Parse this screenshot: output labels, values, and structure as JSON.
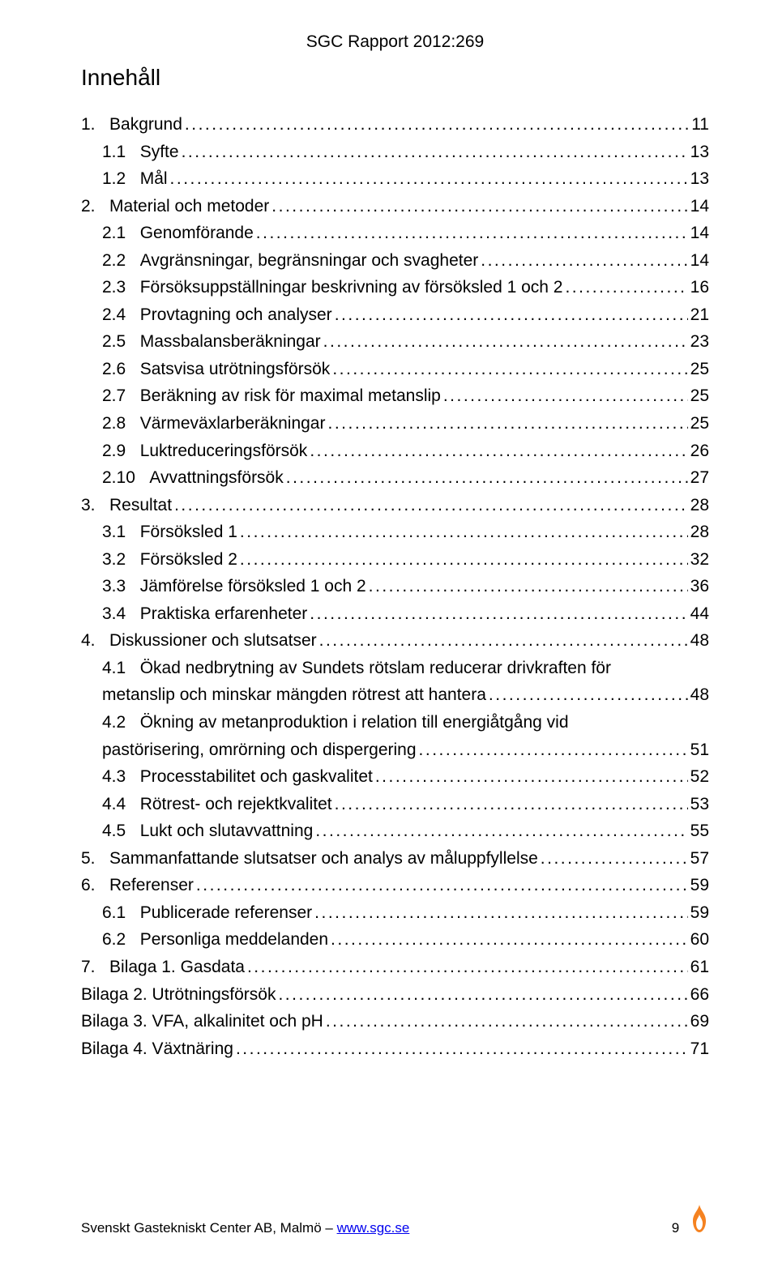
{
  "header": {
    "report_label": "SGC Rapport 2012:269"
  },
  "section_title": "Innehåll",
  "toc": [
    {
      "indent": 0,
      "num": "1.",
      "title": "Bakgrund",
      "page": "11"
    },
    {
      "indent": 1,
      "num": "1.1",
      "title": "Syfte",
      "page": "13"
    },
    {
      "indent": 1,
      "num": "1.2",
      "title": "Mål",
      "page": "13"
    },
    {
      "indent": 0,
      "num": "2.",
      "title": "Material och metoder",
      "page": "14"
    },
    {
      "indent": 1,
      "num": "2.1",
      "title": "Genomförande",
      "page": "14"
    },
    {
      "indent": 1,
      "num": "2.2",
      "title": "Avgränsningar, begränsningar och svagheter",
      "page": "14"
    },
    {
      "indent": 1,
      "num": "2.3",
      "title": "Försöksuppställningar beskrivning av försöksled 1 och 2",
      "page": "16"
    },
    {
      "indent": 1,
      "num": "2.4",
      "title": "Provtagning och analyser",
      "page": "21"
    },
    {
      "indent": 1,
      "num": "2.5",
      "title": "Massbalansberäkningar",
      "page": "23"
    },
    {
      "indent": 1,
      "num": "2.6",
      "title": "Satsvisa utrötningsförsök",
      "page": "25"
    },
    {
      "indent": 1,
      "num": "2.7",
      "title": "Beräkning av risk för maximal metanslip",
      "page": "25"
    },
    {
      "indent": 1,
      "num": "2.8",
      "title": "Värmeväxlarberäkningar",
      "page": "25"
    },
    {
      "indent": 1,
      "num": "2.9",
      "title": "Luktreduceringsförsök",
      "page": "26"
    },
    {
      "indent": 1,
      "num": "2.10",
      "title": "Avvattningsförsök",
      "page": "27"
    },
    {
      "indent": 0,
      "num": "3.",
      "title": "Resultat",
      "page": "28"
    },
    {
      "indent": 1,
      "num": "3.1",
      "title": "Försöksled 1",
      "page": "28"
    },
    {
      "indent": 1,
      "num": "3.2",
      "title": "Försöksled 2",
      "page": "32"
    },
    {
      "indent": 1,
      "num": "3.3",
      "title": "Jämförelse försöksled 1 och 2",
      "page": "36"
    },
    {
      "indent": 1,
      "num": "3.4",
      "title": "Praktiska erfarenheter",
      "page": "44"
    },
    {
      "indent": 0,
      "num": "4.",
      "title": "Diskussioner och slutsatser",
      "page": "48"
    },
    {
      "indent": 1,
      "num": "4.1",
      "title": "Ökad nedbrytning av Sundets rötslam reducerar drivkraften för",
      "title2": "metanslip och minskar mängden rötrest att hantera",
      "page": "48"
    },
    {
      "indent": 1,
      "num": "4.2",
      "title": "Ökning av metanproduktion i relation till energiåtgång vid",
      "title2": "pastörisering, omrörning och dispergering",
      "page": "51"
    },
    {
      "indent": 1,
      "num": "4.3",
      "title": "Processtabilitet och gaskvalitet",
      "page": "52"
    },
    {
      "indent": 1,
      "num": "4.4",
      "title": "Rötrest- och rejektkvalitet",
      "page": "53"
    },
    {
      "indent": 1,
      "num": "4.5",
      "title": "Lukt och slutavvattning",
      "page": "55"
    },
    {
      "indent": 0,
      "num": "5.",
      "title": "Sammanfattande slutsatser och analys av måluppfyllelse",
      "page": "57"
    },
    {
      "indent": 0,
      "num": "6.",
      "title": "Referenser",
      "page": "59"
    },
    {
      "indent": 1,
      "num": "6.1",
      "title": "Publicerade referenser",
      "page": "59"
    },
    {
      "indent": 1,
      "num": "6.2",
      "title": "Personliga meddelanden",
      "page": "60"
    },
    {
      "indent": 0,
      "num": "7.",
      "title": "Bilaga 1. Gasdata",
      "page": "61"
    },
    {
      "indent": 0,
      "num": "",
      "title": "Bilaga 2. Utrötningsförsök",
      "page": "66"
    },
    {
      "indent": 0,
      "num": "",
      "title": "Bilaga 3. VFA, alkalinitet och pH",
      "page": "69"
    },
    {
      "indent": 0,
      "num": "",
      "title": "Bilaga 4. Växtnäring",
      "page": "71"
    }
  ],
  "footer": {
    "org": "Svenskt Gastekniskt Center AB, Malmö – ",
    "link_text": "www.sgc.se",
    "page_number": "9",
    "flame_color": "#f58220"
  }
}
